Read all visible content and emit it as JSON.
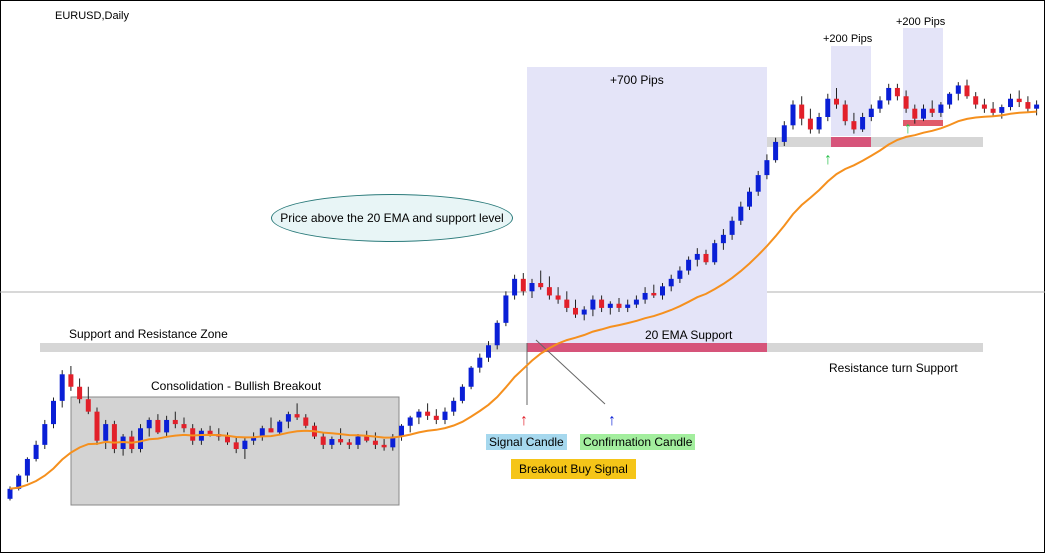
{
  "symbol_title": "EURUSD,Daily",
  "colors": {
    "bull": "#0a1fd6",
    "bear": "#e2202a",
    "ema": "#f5901e",
    "zone": "#d6d6d6",
    "pips_box": "#e4e4f8",
    "pink": "#d6547a",
    "consolidation_box": "#d3d3d3"
  },
  "annotations": {
    "support_resistance_zone": "Support and Resistance Zone",
    "consolidation": "Consolidation - Bullish Breakout",
    "ellipse_text": "Price above the 20 EMA and support level",
    "pips_700": "+700 Pips",
    "pips_200_a": "+200 Pips",
    "pips_200_b": "+200 Pips",
    "ema_support": "20 EMA Support",
    "resistance_turn_support": "Resistance turn Support",
    "signal_candle": "Signal Candle",
    "confirmation_candle": "Confirmation Candle",
    "breakout_buy_signal": "Breakout Buy Signal"
  },
  "chart_data": {
    "type": "candlestick",
    "title": "EURUSD,Daily",
    "series": [
      {
        "name": "20 EMA",
        "type": "line"
      }
    ],
    "candles_note": "price levels unlabeled on the chart; candles drawn as relative values",
    "candles": [
      [
        0.4,
        0.55,
        0.38,
        0.52
      ],
      [
        0.52,
        0.7,
        0.5,
        0.68
      ],
      [
        0.68,
        0.9,
        0.6,
        0.88
      ],
      [
        0.88,
        1.1,
        0.85,
        1.05
      ],
      [
        1.05,
        1.35,
        1.0,
        1.3
      ],
      [
        1.3,
        1.62,
        1.25,
        1.58
      ],
      [
        1.58,
        1.95,
        1.5,
        1.9
      ],
      [
        1.9,
        2.0,
        1.7,
        1.75
      ],
      [
        1.75,
        1.85,
        1.55,
        1.6
      ],
      [
        1.6,
        1.75,
        1.42,
        1.45
      ],
      [
        1.45,
        1.5,
        1.05,
        1.1
      ],
      [
        1.1,
        1.35,
        1.0,
        1.3
      ],
      [
        1.3,
        1.34,
        0.95,
        1.0
      ],
      [
        1.0,
        1.18,
        0.92,
        1.15
      ],
      [
        1.15,
        1.22,
        0.95,
        1.0
      ],
      [
        1.0,
        1.3,
        0.96,
        1.25
      ],
      [
        1.25,
        1.38,
        1.15,
        1.35
      ],
      [
        1.35,
        1.42,
        1.18,
        1.2
      ],
      [
        1.2,
        1.4,
        1.15,
        1.35
      ],
      [
        1.35,
        1.45,
        1.25,
        1.3
      ],
      [
        1.3,
        1.38,
        1.2,
        1.25
      ],
      [
        1.25,
        1.3,
        1.05,
        1.1
      ],
      [
        1.1,
        1.25,
        1.05,
        1.22
      ],
      [
        1.22,
        1.28,
        1.15,
        1.18
      ],
      [
        1.18,
        1.25,
        1.1,
        1.15
      ],
      [
        1.15,
        1.2,
        1.05,
        1.08
      ],
      [
        1.08,
        1.15,
        0.95,
        1.0
      ],
      [
        1.0,
        1.15,
        0.88,
        1.1
      ],
      [
        1.1,
        1.2,
        1.05,
        1.15
      ],
      [
        1.15,
        1.28,
        1.1,
        1.25
      ],
      [
        1.25,
        1.38,
        1.2,
        1.2
      ],
      [
        1.2,
        1.35,
        1.18,
        1.33
      ],
      [
        1.33,
        1.45,
        1.25,
        1.42
      ],
      [
        1.42,
        1.55,
        1.35,
        1.38
      ],
      [
        1.38,
        1.42,
        1.25,
        1.28
      ],
      [
        1.28,
        1.32,
        1.12,
        1.15
      ],
      [
        1.15,
        1.2,
        1.0,
        1.05
      ],
      [
        1.05,
        1.15,
        1.0,
        1.12
      ],
      [
        1.12,
        1.25,
        1.05,
        1.08
      ],
      [
        1.08,
        1.12,
        1.0,
        1.05
      ],
      [
        1.05,
        1.18,
        1.0,
        1.15
      ],
      [
        1.15,
        1.22,
        1.08,
        1.1
      ],
      [
        1.1,
        1.2,
        1.0,
        1.05
      ],
      [
        1.05,
        1.12,
        0.98,
        1.02
      ],
      [
        1.02,
        1.18,
        0.98,
        1.15
      ],
      [
        1.15,
        1.3,
        1.1,
        1.28
      ],
      [
        1.28,
        1.4,
        1.2,
        1.38
      ],
      [
        1.38,
        1.48,
        1.3,
        1.45
      ],
      [
        1.45,
        1.55,
        1.35,
        1.4
      ],
      [
        1.4,
        1.48,
        1.3,
        1.35
      ],
      [
        1.35,
        1.5,
        1.3,
        1.45
      ],
      [
        1.45,
        1.62,
        1.4,
        1.58
      ],
      [
        1.58,
        1.78,
        1.55,
        1.75
      ],
      [
        1.75,
        2.0,
        1.72,
        1.98
      ],
      [
        1.98,
        2.15,
        1.92,
        2.1
      ],
      [
        2.1,
        2.3,
        2.05,
        2.25
      ],
      [
        2.25,
        2.55,
        2.2,
        2.52
      ],
      [
        2.52,
        2.9,
        2.48,
        2.85
      ],
      [
        2.85,
        3.1,
        2.8,
        3.05
      ],
      [
        3.05,
        3.12,
        2.85,
        2.9
      ],
      [
        2.9,
        3.05,
        2.82,
        3.0
      ],
      [
        3.0,
        3.15,
        2.92,
        2.95
      ],
      [
        2.95,
        3.08,
        2.8,
        2.85
      ],
      [
        2.85,
        2.95,
        2.75,
        2.8
      ],
      [
        2.8,
        2.9,
        2.65,
        2.7
      ],
      [
        2.7,
        2.8,
        2.58,
        2.62
      ],
      [
        2.62,
        2.72,
        2.55,
        2.68
      ],
      [
        2.68,
        2.85,
        2.6,
        2.8
      ],
      [
        2.8,
        2.85,
        2.65,
        2.7
      ],
      [
        2.7,
        2.78,
        2.62,
        2.75
      ],
      [
        2.75,
        2.82,
        2.65,
        2.7
      ],
      [
        2.7,
        2.8,
        2.65,
        2.74
      ],
      [
        2.74,
        2.85,
        2.7,
        2.8
      ],
      [
        2.8,
        2.95,
        2.75,
        2.88
      ],
      [
        2.88,
        2.98,
        2.82,
        2.85
      ],
      [
        2.85,
        3.0,
        2.8,
        2.96
      ],
      [
        2.96,
        3.1,
        2.9,
        3.05
      ],
      [
        3.05,
        3.2,
        3.0,
        3.15
      ],
      [
        3.15,
        3.32,
        3.1,
        3.28
      ],
      [
        3.28,
        3.42,
        3.2,
        3.35
      ],
      [
        3.35,
        3.4,
        3.22,
        3.25
      ],
      [
        3.25,
        3.52,
        3.22,
        3.48
      ],
      [
        3.48,
        3.65,
        3.4,
        3.58
      ],
      [
        3.58,
        3.8,
        3.52,
        3.75
      ],
      [
        3.75,
        3.98,
        3.7,
        3.92
      ],
      [
        3.92,
        4.15,
        3.88,
        4.1
      ],
      [
        4.1,
        4.35,
        4.05,
        4.3
      ],
      [
        4.3,
        4.55,
        4.25,
        4.48
      ],
      [
        4.48,
        4.75,
        4.45,
        4.7
      ],
      [
        4.7,
        4.95,
        4.65,
        4.9
      ],
      [
        4.9,
        5.2,
        4.85,
        5.15
      ],
      [
        5.15,
        5.25,
        4.9,
        4.98
      ],
      [
        4.98,
        5.1,
        4.8,
        4.85
      ],
      [
        4.85,
        5.05,
        4.8,
        5.0
      ],
      [
        5.0,
        5.28,
        4.95,
        5.22
      ],
      [
        5.22,
        5.35,
        5.1,
        5.15
      ],
      [
        5.15,
        5.2,
        4.9,
        4.95
      ],
      [
        4.95,
        5.05,
        4.8,
        4.85
      ],
      [
        4.85,
        5.05,
        4.82,
        5.0
      ],
      [
        5.0,
        5.15,
        4.95,
        5.1
      ],
      [
        5.1,
        5.25,
        5.05,
        5.2
      ],
      [
        5.2,
        5.4,
        5.15,
        5.35
      ],
      [
        5.35,
        5.4,
        5.2,
        5.25
      ],
      [
        5.25,
        5.32,
        5.05,
        5.1
      ],
      [
        5.1,
        5.15,
        4.92,
        4.98
      ],
      [
        4.98,
        5.15,
        4.95,
        5.1
      ],
      [
        5.1,
        5.2,
        5.0,
        5.05
      ],
      [
        5.05,
        5.18,
        5.0,
        5.15
      ],
      [
        5.15,
        5.3,
        5.1,
        5.28
      ],
      [
        5.28,
        5.42,
        5.2,
        5.38
      ],
      [
        5.38,
        5.45,
        5.22,
        5.25
      ],
      [
        5.25,
        5.3,
        5.1,
        5.15
      ],
      [
        5.15,
        5.22,
        5.05,
        5.1
      ],
      [
        5.1,
        5.18,
        5.0,
        5.05
      ],
      [
        5.05,
        5.15,
        4.98,
        5.12
      ],
      [
        5.12,
        5.28,
        5.08,
        5.22
      ],
      [
        5.22,
        5.32,
        5.12,
        5.18
      ],
      [
        5.18,
        5.25,
        5.05,
        5.1
      ],
      [
        5.1,
        5.2,
        5.02,
        5.15
      ]
    ]
  }
}
